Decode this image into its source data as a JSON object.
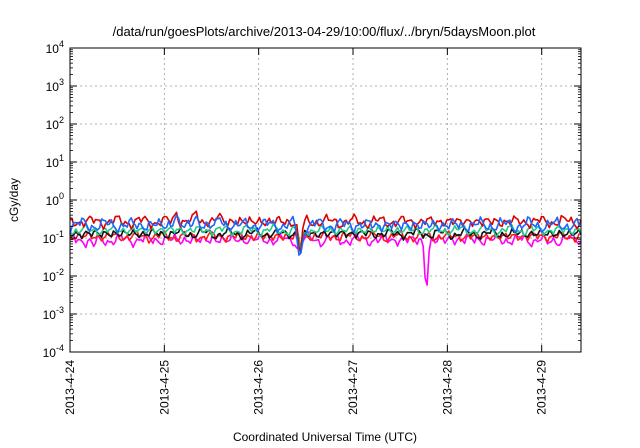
{
  "chart_data": {
    "type": "line",
    "title": "/data/run/goesPlots/archive/2013-04-29/10:00/flux/../bryn/5daysMoon.plot",
    "xlabel": "Coordinated Universal Time (UTC)",
    "ylabel": "cGy/day",
    "yscale": "log",
    "ylim": [
      0.0001,
      10000
    ],
    "y_ticks": [
      {
        "value": 0.0001,
        "base": "10",
        "exp": "-4"
      },
      {
        "value": 0.001,
        "base": "10",
        "exp": "-3"
      },
      {
        "value": 0.01,
        "base": "10",
        "exp": "-2"
      },
      {
        "value": 0.1,
        "base": "10",
        "exp": "-1"
      },
      {
        "value": 1,
        "base": "10",
        "exp": "0"
      },
      {
        "value": 10,
        "base": "10",
        "exp": "1"
      },
      {
        "value": 100,
        "base": "10",
        "exp": "2"
      },
      {
        "value": 1000,
        "base": "10",
        "exp": "3"
      },
      {
        "value": 10000,
        "base": "10",
        "exp": "4"
      }
    ],
    "xlim": [
      "2013-04-24T00:00",
      "2013-04-29T10:00"
    ],
    "x_ticks": [
      {
        "value": "2013-04-24T00:00",
        "label": "2013-4-24"
      },
      {
        "value": "2013-04-25T00:00",
        "label": "2013-4-25"
      },
      {
        "value": "2013-04-26T00:00",
        "label": "2013-4-26"
      },
      {
        "value": "2013-04-27T00:00",
        "label": "2013-4-27"
      },
      {
        "value": "2013-04-28T00:00",
        "label": "2013-4-28"
      },
      {
        "value": "2013-04-29T00:00",
        "label": "2013-4-29"
      }
    ],
    "grid": true,
    "legend": "none",
    "series": [
      {
        "color": "#ff00ff",
        "base": 0.09,
        "amp": 0.35,
        "phase": 0.7,
        "events": [
          {
            "x": "2013-04-24T06:00",
            "y": 0.06
          },
          {
            "x": "2013-04-26T10:00",
            "y": 0.05
          },
          {
            "x": "2013-04-27T18:40",
            "y": 0.0045
          },
          {
            "x": "2013-04-29T01:30",
            "y": 0.07
          }
        ]
      },
      {
        "color": "#ff1a1a",
        "base": 0.11,
        "amp": 0.3,
        "phase": 2.1,
        "events": [
          {
            "x": "2013-04-26T10:30",
            "y": 0.045
          }
        ]
      },
      {
        "color": "#111111",
        "base": 0.13,
        "amp": 0.3,
        "phase": 3.3,
        "events": [
          {
            "x": "2013-04-26T10:40",
            "y": 0.04
          }
        ]
      },
      {
        "color": "#22cc88",
        "base": 0.16,
        "amp": 0.3,
        "phase": 4.2,
        "events": [
          {
            "x": "2013-04-26T10:50",
            "y": 0.05
          }
        ]
      },
      {
        "color": "#dd0000",
        "base": 0.27,
        "amp": 0.35,
        "phase": 1.4,
        "events": [
          {
            "x": "2013-04-25T03:00",
            "y": 0.48
          },
          {
            "x": "2013-04-25T08:00",
            "y": 0.52
          },
          {
            "x": "2013-04-25T14:00",
            "y": 0.45
          },
          {
            "x": "2013-04-26T10:30",
            "y": 0.035
          }
        ]
      },
      {
        "color": "#1a66ff",
        "base": 0.22,
        "amp": 0.4,
        "phase": 5.0,
        "events": [
          {
            "x": "2013-04-25T03:00",
            "y": 0.4
          },
          {
            "x": "2013-04-25T08:00",
            "y": 0.38
          },
          {
            "x": "2013-04-25T14:00",
            "y": 0.35
          },
          {
            "x": "2013-04-26T10:20",
            "y": 0.03
          },
          {
            "x": "2013-04-26T10:45",
            "y": 0.04
          }
        ]
      }
    ]
  }
}
